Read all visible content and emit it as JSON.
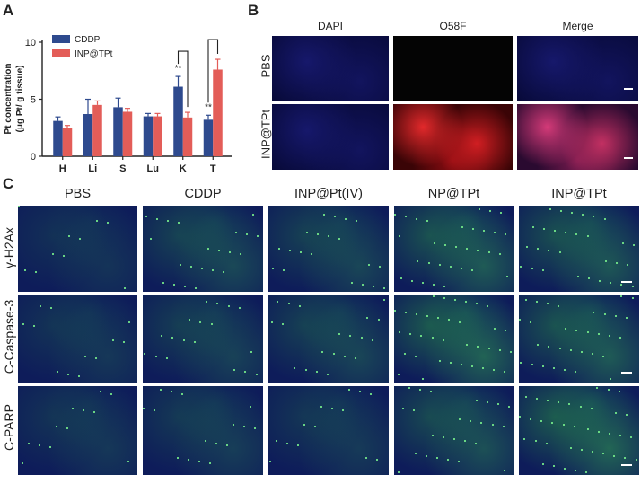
{
  "panels": {
    "a": "A",
    "b": "B",
    "c": "C"
  },
  "chart_data": {
    "type": "bar",
    "categories": [
      "H",
      "Li",
      "S",
      "Lu",
      "K",
      "T"
    ],
    "series": [
      {
        "name": "CDDP",
        "color": "#2e4a8e",
        "values": [
          3.1,
          3.7,
          4.3,
          3.5,
          6.1,
          3.2
        ],
        "errors": [
          0.35,
          1.3,
          0.8,
          0.25,
          0.9,
          0.4
        ]
      },
      {
        "name": "INP@TPt",
        "color": "#e35d58",
        "values": [
          2.5,
          4.5,
          3.9,
          3.5,
          3.4,
          7.6
        ],
        "errors": [
          0.2,
          0.35,
          0.3,
          0.25,
          0.45,
          0.9
        ]
      }
    ],
    "ylabel_line1": "Pt concentration",
    "ylabel_line2": "(μg Pt/ g tissue)",
    "yticks": [
      "0",
      "5",
      "10"
    ],
    "ylim": [
      0,
      10
    ],
    "significance": [
      {
        "category": "K",
        "label": "**"
      },
      {
        "category": "T",
        "label": "**"
      }
    ]
  },
  "panel_b": {
    "columns": [
      "DAPI",
      "O58F",
      "Merge"
    ],
    "column_colors": [
      "#2a2ab8",
      "#b52020",
      "#222222"
    ],
    "rows": [
      "PBS",
      "INP@TPt"
    ],
    "tiles": [
      [
        "blue",
        "black",
        "blue"
      ],
      [
        "blue",
        "red",
        "magenta"
      ]
    ]
  },
  "panel_c": {
    "columns": [
      "PBS",
      "CDDP",
      "INP@Pt(IV)",
      "NP@TPt",
      "INP@TPt"
    ],
    "rows": [
      "γ-H2Ax",
      "C-Caspase-3",
      "C-PARP"
    ],
    "green_intensity": [
      [
        0.05,
        0.35,
        0.3,
        0.6,
        0.55
      ],
      [
        0.1,
        0.25,
        0.3,
        0.7,
        0.6
      ],
      [
        0.1,
        0.2,
        0.15,
        0.45,
        0.75
      ]
    ]
  }
}
